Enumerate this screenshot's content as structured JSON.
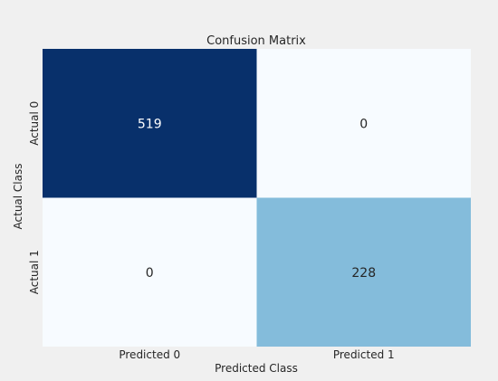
{
  "chart_data": {
    "type": "heatmap",
    "title": "Confusion Matrix",
    "xlabel": "Predicted Class",
    "ylabel": "Actual Class",
    "x_categories": [
      "Predicted 0",
      "Predicted 1"
    ],
    "y_categories": [
      "Actual 0",
      "Actual 1"
    ],
    "values": [
      [
        519,
        0
      ],
      [
        0,
        228
      ]
    ],
    "colormap": "Blues",
    "colors": {
      "background": "#f0f0f0",
      "text_light": "#ffffff",
      "text_dark": "#262626"
    }
  }
}
